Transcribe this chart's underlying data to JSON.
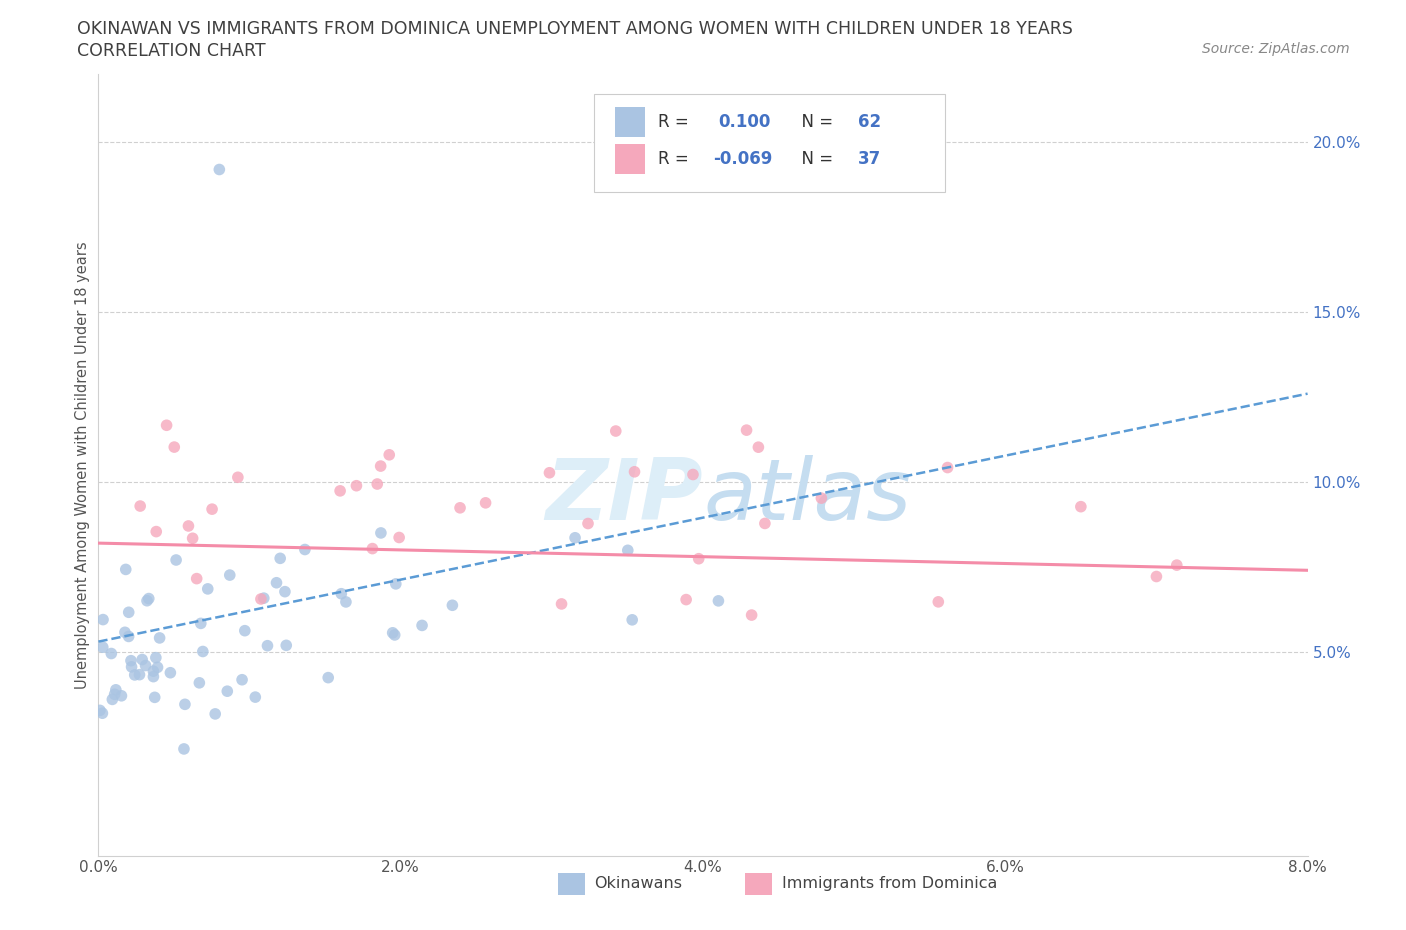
{
  "title_line1": "OKINAWAN VS IMMIGRANTS FROM DOMINICA UNEMPLOYMENT AMONG WOMEN WITH CHILDREN UNDER 18 YEARS",
  "title_line2": "CORRELATION CHART",
  "source_text": "Source: ZipAtlas.com",
  "ylabel": "Unemployment Among Women with Children Under 18 years",
  "xlim": [
    0.0,
    0.08
  ],
  "ylim": [
    -0.01,
    0.22
  ],
  "xticks": [
    0.0,
    0.02,
    0.04,
    0.06,
    0.08
  ],
  "xtick_labels": [
    "0.0%",
    "2.0%",
    "4.0%",
    "6.0%",
    "8.0%"
  ],
  "yticks_right": [
    0.05,
    0.1,
    0.15,
    0.2
  ],
  "ytick_labels_right": [
    "5.0%",
    "10.0%",
    "15.0%",
    "20.0%"
  ],
  "color_blue": "#aac4e2",
  "color_pink": "#f5a8bc",
  "color_blue_dark": "#5b9bd5",
  "color_pink_dark": "#f48ca8",
  "color_blue_text": "#4472c4",
  "color_title": "#404040",
  "legend_label1": "Okinawans",
  "legend_label2": "Immigrants from Dominica",
  "blue_line_x": [
    0.0,
    0.08
  ],
  "blue_line_y": [
    0.053,
    0.126
  ],
  "pink_line_x": [
    0.0,
    0.08
  ],
  "pink_line_y": [
    0.082,
    0.074
  ],
  "grid_color": "#d0d0d0",
  "spine_color": "#d0d0d0"
}
